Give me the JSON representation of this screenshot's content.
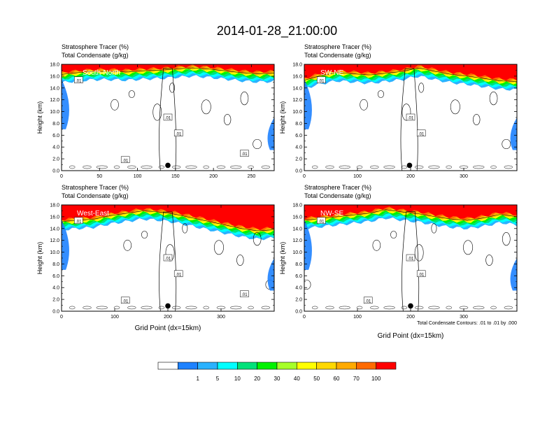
{
  "figure": {
    "title": "2014-01-28_21:00:00",
    "footnote": "Total Condensate Contours: .01 to .01 by .000"
  },
  "colorbar": {
    "labels": [
      "1",
      "5",
      "10",
      "20",
      "30",
      "40",
      "50",
      "60",
      "70",
      "100"
    ],
    "colors": [
      "#ffffff",
      "#1e82ff",
      "#2ab2ff",
      "#00ffff",
      "#00e27a",
      "#00f200",
      "#a6ff28",
      "#ffff00",
      "#ffd800",
      "#ffaa00",
      "#ff6a00",
      "#ff0000"
    ]
  },
  "chart_data": [
    {
      "type": "heatmap",
      "panel_label": "South-North",
      "title_line1": "Stratosphere Tracer   (%)",
      "title_line2": "Total Condensate   (g/kg)",
      "ylabel": "Height (km)",
      "xlabel": "",
      "xlim": [
        0,
        280
      ],
      "ylim": [
        0,
        18
      ],
      "xticks": [
        "0",
        "50",
        "100",
        "150",
        "200",
        "250"
      ],
      "xtick_values": [
        0,
        50,
        100,
        150,
        200,
        250
      ],
      "yticks": [
        "0.0",
        "2.0",
        "4.0",
        "6.0",
        "8.0",
        "10.0",
        "12.0",
        "14.0",
        "16.0",
        "18.0"
      ],
      "tropopause_km": [
        16.5,
        16.8,
        17.0,
        17.0,
        16.9,
        17.1,
        17.2,
        17.4,
        17.6,
        17.4,
        17.1,
        16.8,
        16.6,
        16.7
      ],
      "contour_labels": [
        ".01",
        ".01",
        ".01",
        ".01",
        ".01"
      ],
      "marker_x": 140
    },
    {
      "type": "heatmap",
      "panel_label": "SW-NE",
      "title_line1": "Stratosphere Tracer   (%)",
      "title_line2": "Total Condensate   (g/kg)",
      "ylabel": "Height (km)",
      "xlabel": "",
      "xlim": [
        0,
        400
      ],
      "ylim": [
        0,
        18
      ],
      "xticks": [
        "0",
        "100",
        "200",
        "300"
      ],
      "xtick_values": [
        0,
        100,
        200,
        300
      ],
      "yticks": [
        "0.0",
        "2.0",
        "4.0",
        "6.0",
        "8.0",
        "10.0",
        "12.0",
        "14.0",
        "16.0",
        "18.0"
      ],
      "tropopause_km": [
        15.5,
        16.3,
        16.8,
        16.6,
        16.4,
        16.7,
        17.0,
        17.6,
        17.0,
        16.5,
        16.2,
        15.8,
        15.4,
        15.3
      ],
      "contour_labels": [
        ".01",
        ".01",
        ".01"
      ],
      "marker_x": 198
    },
    {
      "type": "heatmap",
      "panel_label": "West-East",
      "title_line1": "Stratosphere Tracer   (%)",
      "title_line2": "Total Condensate   (g/kg)",
      "ylabel": "Height (km)",
      "xlabel": "Grid Point (dx=15km)",
      "xlim": [
        0,
        400
      ],
      "ylim": [
        0,
        18
      ],
      "xticks": [
        "0",
        "100",
        "200",
        "300"
      ],
      "xtick_values": [
        0,
        100,
        200,
        300
      ],
      "yticks": [
        "0.0",
        "2.0",
        "4.0",
        "6.0",
        "8.0",
        "10.0",
        "12.0",
        "14.0",
        "16.0",
        "18.0"
      ],
      "tropopause_km": [
        15.4,
        15.6,
        15.8,
        16.4,
        16.8,
        17.2,
        17.0,
        16.6,
        16.0,
        15.4,
        14.8,
        14.2,
        13.8,
        14.0
      ],
      "contour_labels": [
        ".01",
        ".01",
        ".01",
        ".01",
        ".01"
      ],
      "marker_x": 200
    },
    {
      "type": "heatmap",
      "panel_label": "NW-SE",
      "title_line1": "Stratosphere Tracer   (%)",
      "title_line2": "Total Condensate   (g/kg)",
      "ylabel": "Height (km)",
      "xlabel": "Grid Point (dx=15km)",
      "xlim": [
        0,
        400
      ],
      "ylim": [
        0,
        18
      ],
      "xticks": [
        "0",
        "100",
        "200",
        "300"
      ],
      "xtick_values": [
        0,
        100,
        200,
        300
      ],
      "yticks": [
        "0.0",
        "2.0",
        "4.0",
        "6.0",
        "8.0",
        "10.0",
        "12.0",
        "14.0",
        "16.0",
        "18.0"
      ],
      "tropopause_km": [
        15.6,
        15.9,
        16.2,
        16.5,
        16.8,
        17.4,
        17.0,
        16.7,
        16.2,
        15.8,
        15.6,
        16.0,
        16.6,
        16.2
      ],
      "contour_labels": [
        ".01",
        ".01",
        ".01",
        ".01"
      ],
      "marker_x": 200
    }
  ]
}
